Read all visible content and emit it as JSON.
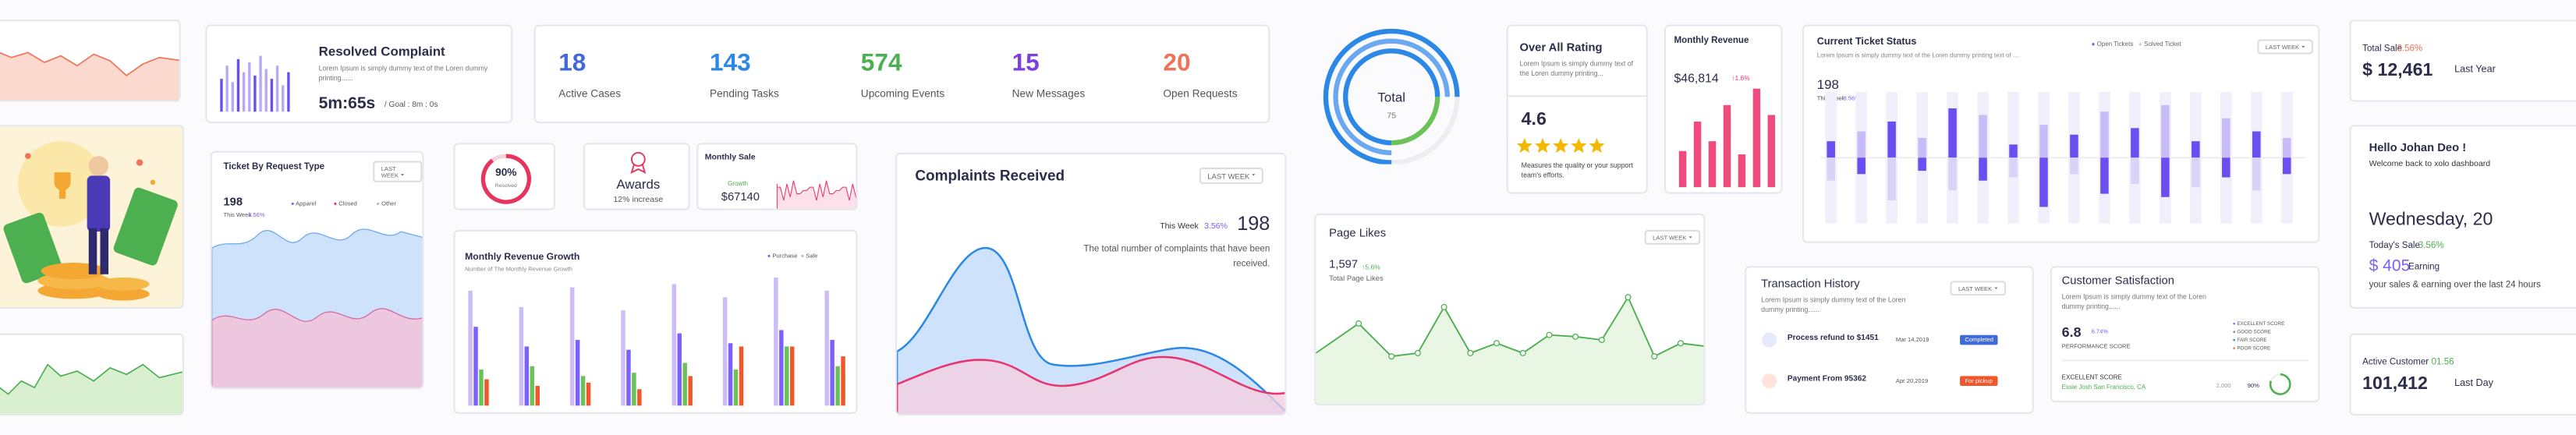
{
  "resolved": {
    "title": "Resolved Complaint",
    "text": "Lorem Ipsum is simply dummy text of the Loren dummy printing......",
    "time": "5m:65s",
    "goal": "/ Goal : 8m : 0s"
  },
  "stats": [
    {
      "value": "18",
      "label": "Active Cases"
    },
    {
      "value": "143",
      "label": "Pending Tasks"
    },
    {
      "value": "574",
      "label": "Upcoming Events"
    },
    {
      "value": "15",
      "label": "New Messages"
    },
    {
      "value": "20",
      "label": "Open Requests"
    }
  ],
  "ticket_type": {
    "title": "Ticket By Request Type",
    "filter": "LAST WEEK",
    "value": "198",
    "week": "This Week",
    "change": "3.56%",
    "legend": [
      "Apparel",
      "Closed",
      "Other"
    ]
  },
  "resolved_pct": {
    "value": "90%",
    "label": "Resolved"
  },
  "awards": {
    "title": "Awards",
    "text": "12% increase"
  },
  "monthly_sale": {
    "title": "Monthly Sale",
    "growth": "Growth",
    "value": "$67140"
  },
  "revenue_growth": {
    "title": "Monthly Revenue Growth",
    "subtitle": "Number of The Monthly Revenue Growth",
    "legend": [
      "Purchase",
      "Sale"
    ]
  },
  "complaints": {
    "title": "Complaints Received",
    "filter": "LAST WEEK",
    "week": "This Week",
    "change": "3.56%",
    "value": "198",
    "text": "The total number of complaints that have been received."
  },
  "gauge": {
    "label": "Total",
    "value": "75"
  },
  "rating": {
    "title": "Over All Rating",
    "text": "Lorem Ipsum is simply dummy text of the Loren dummy printing...",
    "value": "4.6",
    "note": "Measures the quality or your support team's efforts."
  },
  "monthly_revenue": {
    "title": "Monthly Revenue",
    "value": "$46,814",
    "change": "↑1.6%"
  },
  "ticket_status": {
    "title": "Current Ticket Status",
    "text": "Lorem Ipsum is simply dummy text of the Loren dummy printing text of ....",
    "legend": [
      "Open Tickets",
      "Solved Ticket"
    ],
    "filter": "LAST WEEK",
    "value": "198",
    "week": "This Week",
    "change": "3.56%"
  },
  "page_likes": {
    "title": "Page Likes",
    "filter": "LAST WEEK",
    "value": "1,597",
    "change": "↑5.6%",
    "label": "Total Page Likes"
  },
  "transactions": {
    "title": "Transaction History",
    "filter": "LAST WEEK",
    "text": "Lorem Ipsum is simply dummy text of the Loren dummy printing......",
    "rows": [
      {
        "name": "Process refund to $1451",
        "date": "Mar 14,2019",
        "status": "Completed"
      },
      {
        "name": "Payment From 95362",
        "date": "Apr 20,2019",
        "status": "For pickup"
      }
    ]
  },
  "satisfaction": {
    "title": "Customer Satisfaction",
    "text": "Lorem Ipsum is simply dummy text of the Loren dummy printing......",
    "value": "6.8",
    "change": "6.74%",
    "label": "PERFORMANCE SCORE",
    "legend": [
      "EXCELLENT SCORE",
      "GOOD SCORE",
      "FAIR SCORE",
      "POOR SCORE"
    ],
    "excellent": "EXCELLENT SCORE",
    "person": "Essie Josh San Francisco, CA",
    "count": "2,000",
    "pct": "90%"
  },
  "total_sale": {
    "title": "Total Sale",
    "change": "3.56%",
    "value": "$ 12,461",
    "period": "Last Year"
  },
  "hello": {
    "title": "Hello Johan Deo !",
    "subtitle": "Welcome back to xolo dashboard",
    "date": "Wednesday, 20",
    "today": "Today's Sale",
    "change": "3.56%",
    "value": "$ 405",
    "earning": "Earning",
    "note": "your sales & earning over the last 24 hours"
  },
  "active": {
    "title": "Active Customer",
    "change": "01.56",
    "value": "101,412",
    "period": "Last Day"
  }
}
